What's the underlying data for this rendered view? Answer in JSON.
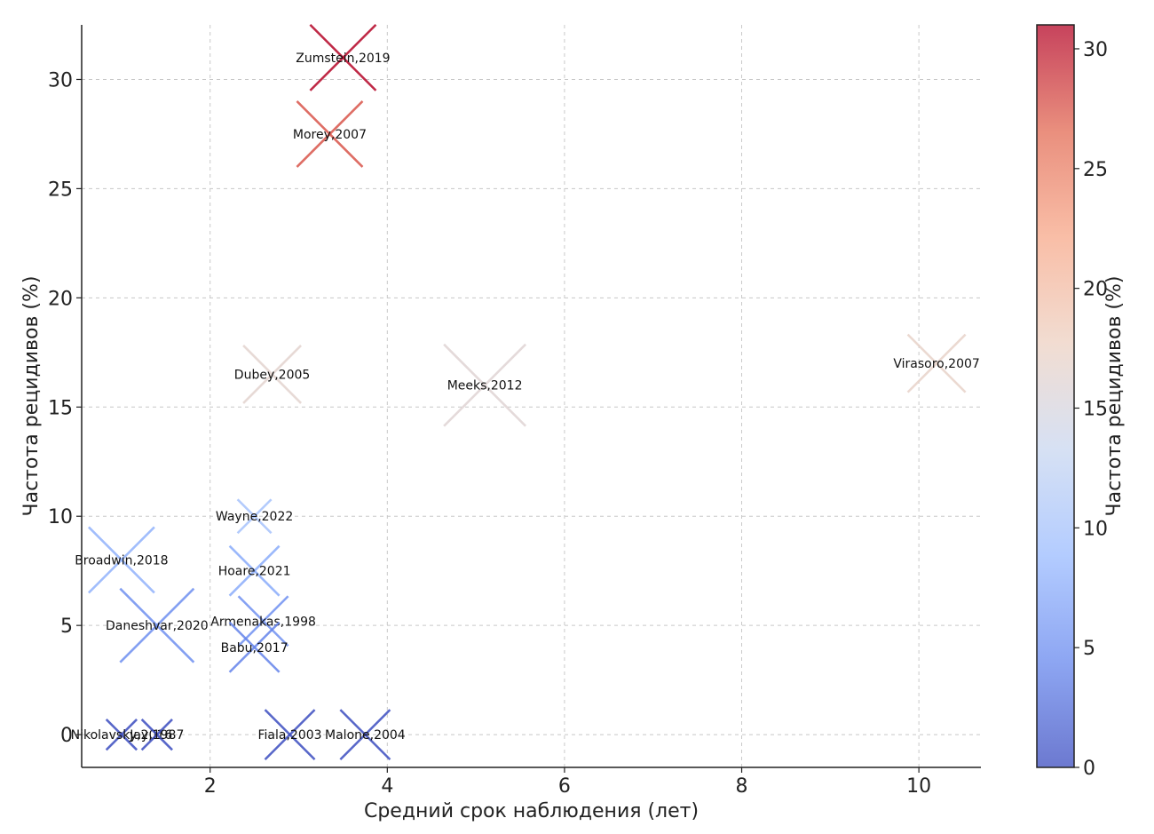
{
  "chart_data": {
    "type": "scatter",
    "xlabel": "Средний срок наблюдения (лет)",
    "ylabel": "Частота рецидивов (%)",
    "xlim": [
      0.55,
      10.7
    ],
    "ylim": [
      -1.5,
      32.5
    ],
    "xticks": [
      "2",
      "4",
      "6",
      "8",
      "10"
    ],
    "yticks": [
      "0",
      "5",
      "10",
      "15",
      "20",
      "25",
      "30"
    ],
    "grid": true,
    "marker": "x",
    "colorbar": {
      "label": "Частота рецидивов (%)",
      "min": 0,
      "max": 31,
      "ticks": [
        "0",
        "5",
        "10",
        "15",
        "20",
        "25",
        "30"
      ],
      "colormap": "coolwarm",
      "stops": [
        "#3b4cc0",
        "#6788ee",
        "#9abbff",
        "#c9d7f0",
        "#edd1c2",
        "#f7a889",
        "#e26952",
        "#b40426"
      ]
    },
    "points": [
      {
        "label": "Zumstein,2019",
        "x": 3.5,
        "y": 31,
        "size": 3
      },
      {
        "label": "Morey,2007",
        "x": 3.35,
        "y": 27.5,
        "size": 3
      },
      {
        "label": "Dubey,2005",
        "x": 2.7,
        "y": 16.5,
        "size": 2.5
      },
      {
        "label": "Meeks,2012",
        "x": 5.1,
        "y": 16,
        "size": 4
      },
      {
        "label": "Virasoro,2007",
        "x": 10.2,
        "y": 17,
        "size": 2.5
      },
      {
        "label": "Wayne,2022",
        "x": 2.5,
        "y": 10,
        "size": 1
      },
      {
        "label": "Broadwin,2018",
        "x": 1.0,
        "y": 8,
        "size": 3
      },
      {
        "label": "Hoare,2021",
        "x": 2.5,
        "y": 7.5,
        "size": 2
      },
      {
        "label": "Daneshvar,2020",
        "x": 1.4,
        "y": 5,
        "size": 3.5
      },
      {
        "label": "Armenakas,1998",
        "x": 2.6,
        "y": 5.2,
        "size": 2
      },
      {
        "label": "Babu,2017",
        "x": 2.5,
        "y": 4,
        "size": 2
      },
      {
        "label": "Nikolavsky,2016",
        "x": 1.0,
        "y": 0,
        "size": 0.8
      },
      {
        "label": "Jay,1987",
        "x": 1.4,
        "y": 0,
        "size": 0.8
      },
      {
        "label": "Fiala,2003",
        "x": 2.9,
        "y": 0,
        "size": 2
      },
      {
        "label": "Malone,2004",
        "x": 3.75,
        "y": 0,
        "size": 2
      }
    ]
  }
}
